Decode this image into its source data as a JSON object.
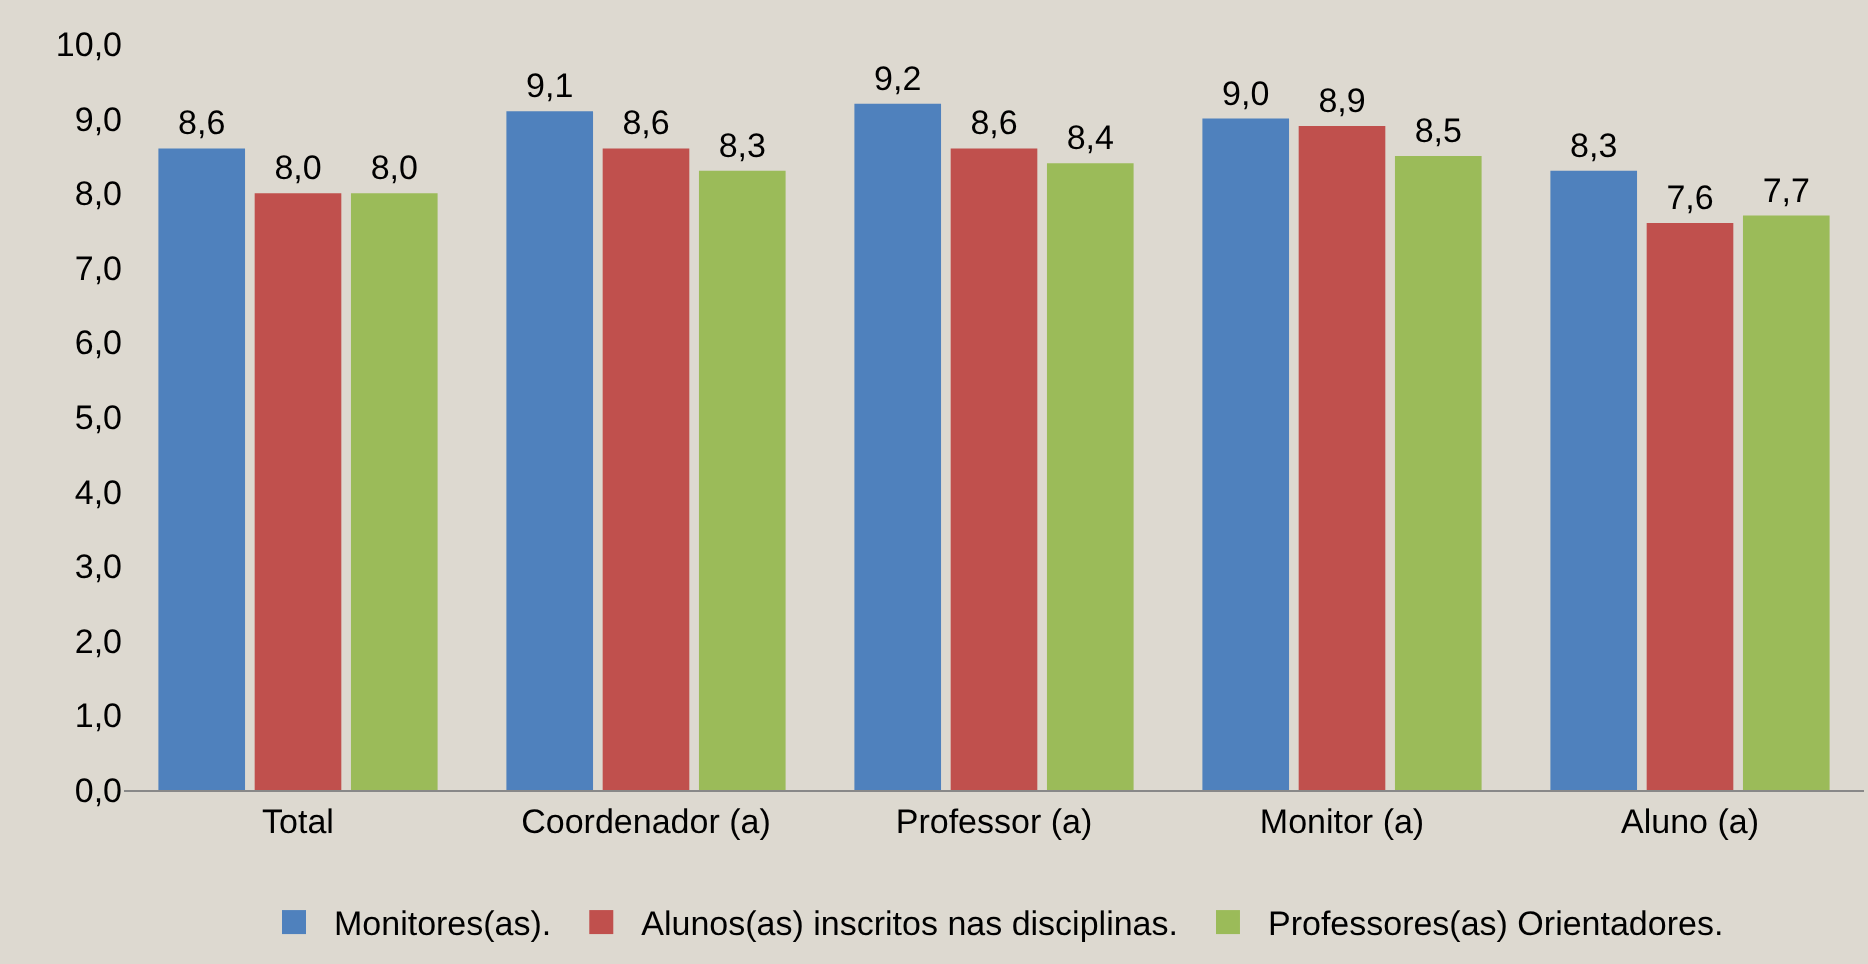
{
  "chart_data": {
    "type": "bar",
    "categories": [
      "Total",
      "Coordenador (a)",
      "Professor (a)",
      "Monitor (a)",
      "Aluno (a)"
    ],
    "series": [
      {
        "name": "Monitores(as).",
        "color": "#4f81bd",
        "values": [
          8.6,
          9.1,
          9.2,
          9.0,
          8.3
        ],
        "value_labels": [
          "8,6",
          "9,1",
          "9,2",
          "9,0",
          "8,3"
        ]
      },
      {
        "name": "Alunos(as) inscritos nas disciplinas.",
        "color": "#c0504d",
        "values": [
          8.0,
          8.6,
          8.6,
          8.9,
          7.6
        ],
        "value_labels": [
          "8,0",
          "8,6",
          "8,6",
          "8,9",
          "7,6"
        ]
      },
      {
        "name": "Professores(as) Orientadores.",
        "color": "#9bbb59",
        "values": [
          8.0,
          8.3,
          8.4,
          8.5,
          7.7
        ],
        "value_labels": [
          "8,0",
          "8,3",
          "8,4",
          "8,5",
          "7,7"
        ]
      }
    ],
    "ylim": [
      0,
      10
    ],
    "yticks": [
      {
        "value": 0,
        "label": "0,0"
      },
      {
        "value": 1,
        "label": "1,0"
      },
      {
        "value": 2,
        "label": "2,0"
      },
      {
        "value": 3,
        "label": "3,0"
      },
      {
        "value": 4,
        "label": "4,0"
      },
      {
        "value": 5,
        "label": "5,0"
      },
      {
        "value": 6,
        "label": "6,0"
      },
      {
        "value": 7,
        "label": "7,0"
      },
      {
        "value": 8,
        "label": "8,0"
      },
      {
        "value": 9,
        "label": "9,0"
      },
      {
        "value": 10,
        "label": "10,0"
      }
    ],
    "grid": false,
    "legend": "bottom"
  }
}
